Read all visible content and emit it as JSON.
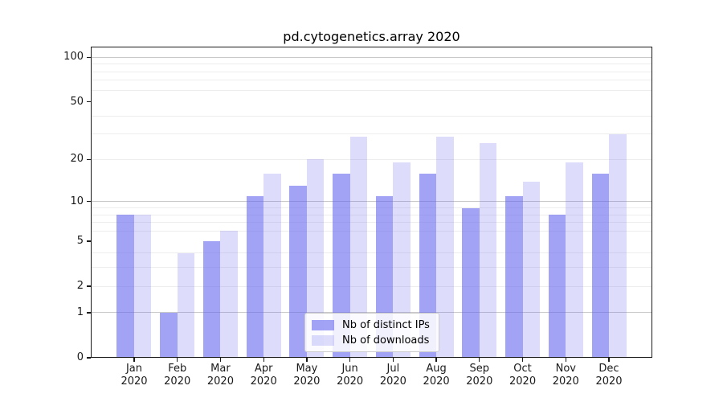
{
  "chart_data": {
    "type": "bar",
    "title": "pd.cytogenetics.array 2020",
    "categories": [
      "Jan 2020",
      "Feb 2020",
      "Mar 2020",
      "Apr 2020",
      "May 2020",
      "Jun 2020",
      "Jul 2020",
      "Aug 2020",
      "Sep 2020",
      "Oct 2020",
      "Nov 2020",
      "Dec 2020"
    ],
    "series": [
      {
        "name": "Nb of distinct IPs",
        "color": "rgba(102,102,238,0.6)",
        "values": [
          8,
          1,
          5,
          11,
          13,
          16,
          11,
          16,
          9,
          11,
          8,
          16
        ]
      },
      {
        "name": "Nb of downloads",
        "color": "rgba(102,102,238,0.22)",
        "values": [
          8,
          4,
          6,
          16,
          20,
          29,
          19,
          29,
          26,
          14,
          19,
          30
        ]
      }
    ],
    "yticks": [
      0,
      1,
      2,
      5,
      10,
      20,
      50,
      100
    ],
    "major_gridlines": [
      1,
      10,
      100
    ],
    "minor_gridlines": [
      2,
      3,
      4,
      6,
      7,
      8,
      9,
      20,
      30,
      40,
      60,
      70,
      80,
      90
    ],
    "scale": "log1p",
    "ylim": [
      0,
      118
    ],
    "xlabel": "",
    "ylabel": "",
    "grid": true,
    "legend_position": "lower center",
    "accent_color": "#6666ee",
    "background_color": "#ffffff"
  }
}
